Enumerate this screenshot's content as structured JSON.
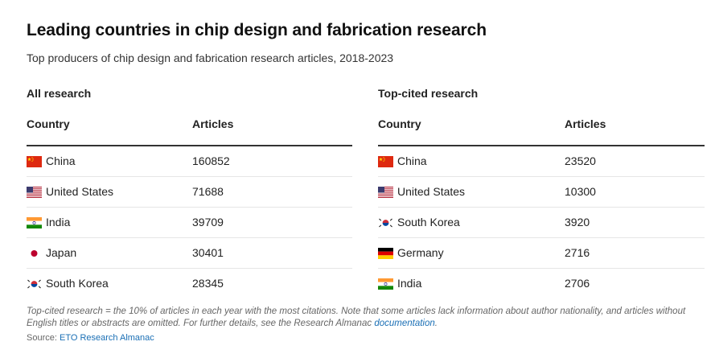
{
  "header": {
    "title": "Leading countries in chip design and fabrication research",
    "subtitle": "Top producers of chip design and fabrication research articles, 2018-2023"
  },
  "chart_data": [
    {
      "type": "table",
      "title": "All research",
      "columns": [
        "Country",
        "Articles"
      ],
      "rows": [
        {
          "country": "China",
          "flag": "cn-flag-icon",
          "articles": "160852"
        },
        {
          "country": "United States",
          "flag": "us-flag-icon",
          "articles": "71688"
        },
        {
          "country": "India",
          "flag": "in-flag-icon",
          "articles": "39709"
        },
        {
          "country": "Japan",
          "flag": "jp-flag-icon",
          "articles": "30401"
        },
        {
          "country": "South Korea",
          "flag": "kr-flag-icon",
          "articles": "28345"
        }
      ]
    },
    {
      "type": "table",
      "title": "Top-cited research",
      "columns": [
        "Country",
        "Articles"
      ],
      "rows": [
        {
          "country": "China",
          "flag": "cn-flag-icon",
          "articles": "23520"
        },
        {
          "country": "United States",
          "flag": "us-flag-icon",
          "articles": "10300"
        },
        {
          "country": "South Korea",
          "flag": "kr-flag-icon",
          "articles": "3920"
        },
        {
          "country": "Germany",
          "flag": "de-flag-icon",
          "articles": "2716"
        },
        {
          "country": "India",
          "flag": "in-flag-icon",
          "articles": "2706"
        }
      ]
    }
  ],
  "footer": {
    "note": "Top-cited research = the 10% of articles in each year with the most citations. Note that some articles lack information about author nationality, and articles without English titles or abstracts are omitted. For further details, see the Research Almanac",
    "note_link": "documentation",
    "note_end": ".",
    "source_label": "Source:",
    "source_link": "ETO Research Almanac"
  },
  "colors": {
    "link": "#1a6fb5",
    "header_rule": "#333333",
    "row_rule": "#e6e6e6"
  }
}
